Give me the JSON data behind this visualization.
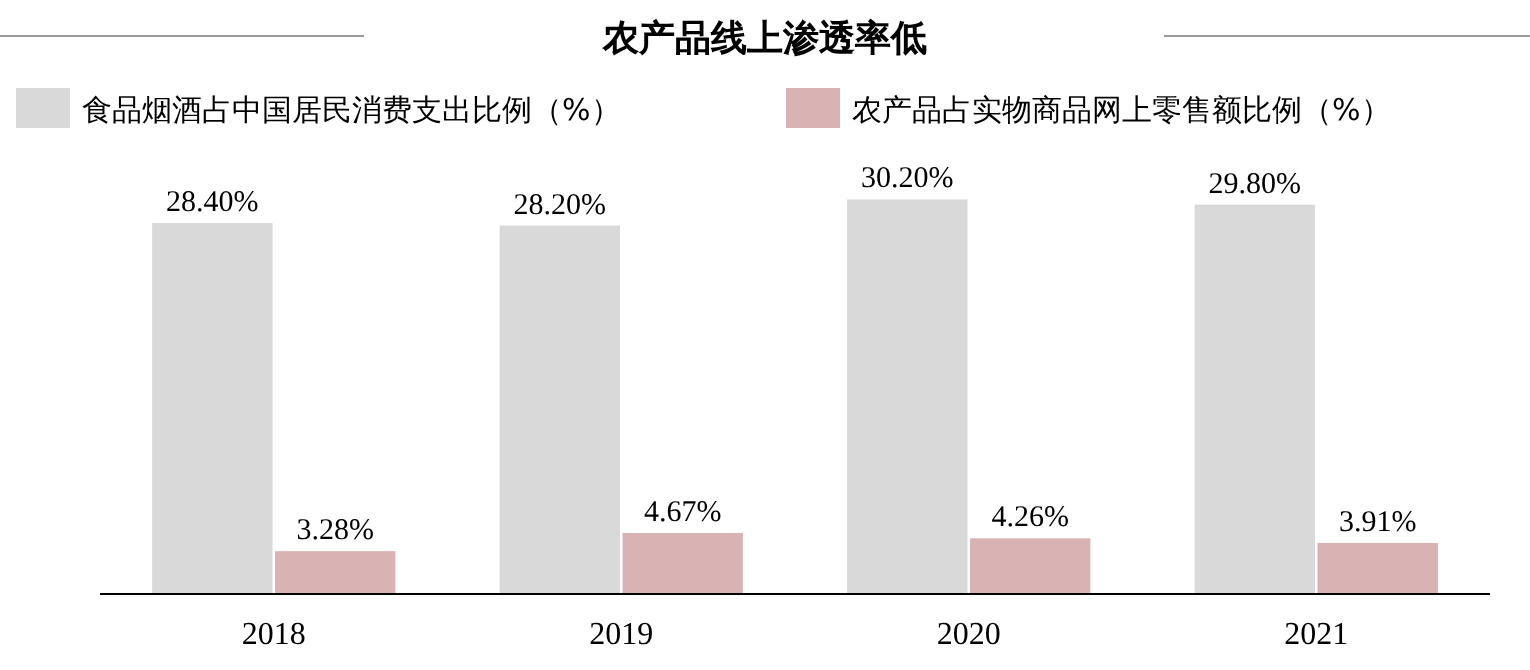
{
  "chart_data": {
    "type": "bar",
    "title": "农产品线上渗透率低",
    "categories": [
      "2018",
      "2019",
      "2020",
      "2021"
    ],
    "series": [
      {
        "name": "食品烟酒占中国居民消费支出比例（%）",
        "color": "#d9d9d9",
        "values": [
          28.4,
          28.2,
          30.2,
          29.8
        ],
        "value_labels": [
          "28.40%",
          "28.20%",
          "30.20%",
          "29.80%"
        ]
      },
      {
        "name": "农产品占实物商品网上零售额比例（%）",
        "color": "#d9b3b3",
        "values": [
          3.28,
          4.67,
          4.26,
          3.91
        ],
        "value_labels": [
          "3.28%",
          "4.67%",
          "4.26%",
          "3.91%"
        ]
      }
    ],
    "legend": "top",
    "grid": false
  }
}
